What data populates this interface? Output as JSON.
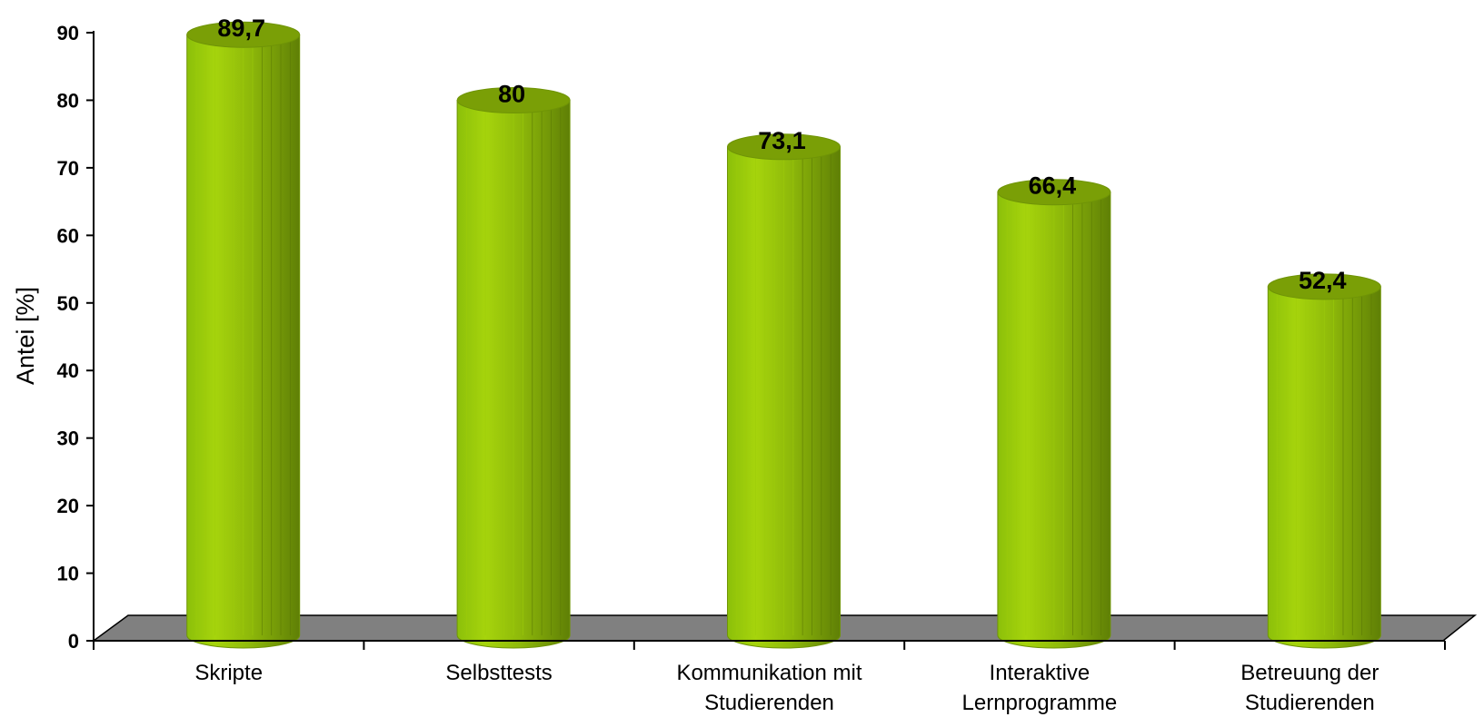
{
  "chart_data": {
    "type": "bar",
    "style": "3d-cylinder",
    "categories": [
      [
        "Skripte"
      ],
      [
        "Selbsttests"
      ],
      [
        "Kommunikation mit",
        "Studierenden"
      ],
      [
        "Interaktive",
        "Lernprogramme"
      ],
      [
        "Betreuung der",
        "Studierenden"
      ]
    ],
    "values": [
      89.7,
      80,
      73.1,
      66.4,
      52.4
    ],
    "value_labels": [
      "89,7",
      "80",
      "73,1",
      "66,4",
      "52,4"
    ],
    "title": "",
    "xlabel": "",
    "ylabel": "Antei [%]",
    "ylim": [
      0,
      90
    ],
    "yticks": [
      0,
      10,
      20,
      30,
      40,
      50,
      60,
      70,
      80,
      90
    ],
    "grid": false,
    "legend": "none",
    "colors": {
      "bar_light": "#a6d40c",
      "bar_mid": "#8fba0a",
      "bar_dark": "#5f7f06",
      "bar_top": "#7a9f06",
      "floor": "#808080",
      "axis": "#000000"
    }
  }
}
